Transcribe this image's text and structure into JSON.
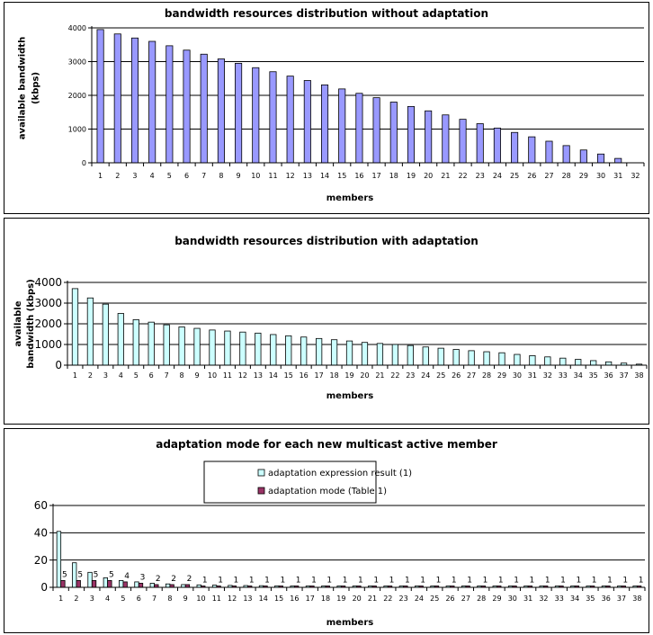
{
  "chart_data": [
    {
      "type": "bar",
      "title": "bandwidth resources distribution without adaptation",
      "xlabel": "members",
      "ylabel": "available bandwidth (kbps)",
      "ylabel_lines": [
        "available bandwidth",
        "(kbps)"
      ],
      "ylim": [
        0,
        4000
      ],
      "yticks": [
        0,
        1000,
        2000,
        3000,
        4000
      ],
      "grid": true,
      "bar_color": "#9999ff",
      "categories": [
        "1",
        "2",
        "3",
        "4",
        "5",
        "6",
        "7",
        "8",
        "9",
        "10",
        "11",
        "12",
        "13",
        "14",
        "15",
        "16",
        "17",
        "18",
        "19",
        "20",
        "21",
        "22",
        "23",
        "24",
        "25",
        "26",
        "27",
        "28",
        "29",
        "30",
        "31",
        "32"
      ],
      "values": [
        3950,
        3820,
        3700,
        3600,
        3470,
        3340,
        3220,
        3080,
        2950,
        2820,
        2700,
        2570,
        2440,
        2310,
        2190,
        2060,
        1930,
        1800,
        1670,
        1540,
        1420,
        1290,
        1160,
        1030,
        900,
        770,
        640,
        510,
        380,
        260,
        130,
        0
      ]
    },
    {
      "type": "bar",
      "title": "bandwidth resources distribution with adaptation",
      "xlabel": "members",
      "ylabel": "available bandwidth (kbps)",
      "ylabel_lines": [
        "available",
        "bandwidth (kbps)"
      ],
      "ylim": [
        0,
        4000
      ],
      "yticks": [
        0,
        1000,
        2000,
        3000,
        4000
      ],
      "grid": true,
      "bar_color": "#ccffff",
      "categories": [
        "1",
        "2",
        "3",
        "4",
        "5",
        "6",
        "7",
        "8",
        "9",
        "10",
        "11",
        "12",
        "13",
        "14",
        "15",
        "16",
        "17",
        "18",
        "19",
        "20",
        "21",
        "22",
        "23",
        "24",
        "25",
        "26",
        "27",
        "28",
        "29",
        "30",
        "31",
        "32",
        "33",
        "34",
        "35",
        "36",
        "37",
        "38"
      ],
      "values": [
        3700,
        3250,
        2950,
        2500,
        2200,
        2080,
        1950,
        1850,
        1780,
        1700,
        1650,
        1600,
        1550,
        1480,
        1420,
        1360,
        1290,
        1230,
        1170,
        1100,
        1050,
        1000,
        950,
        880,
        820,
        760,
        700,
        650,
        600,
        520,
        460,
        400,
        340,
        280,
        220,
        160,
        100,
        50
      ]
    },
    {
      "type": "bar",
      "title": "adaptation mode for each new multicast active member",
      "xlabel": "members",
      "ylabel": "",
      "ylim": [
        0,
        60
      ],
      "yticks": [
        0,
        20,
        40,
        60
      ],
      "grid": true,
      "legend": "top-center",
      "categories": [
        "1",
        "2",
        "3",
        "4",
        "5",
        "6",
        "7",
        "8",
        "9",
        "10",
        "11",
        "12",
        "13",
        "14",
        "15",
        "16",
        "17",
        "18",
        "19",
        "20",
        "21",
        "22",
        "23",
        "24",
        "25",
        "26",
        "27",
        "28",
        "29",
        "30",
        "31",
        "32",
        "33",
        "34",
        "35",
        "36",
        "37",
        "38"
      ],
      "series": [
        {
          "name": "adaptation expression result (1)",
          "color": "#ccffff",
          "values": [
            41,
            18,
            11,
            7,
            5,
            4,
            3,
            2.5,
            2,
            1.8,
            1.6,
            1.4,
            1.3,
            1.2,
            1.1,
            1,
            1,
            1,
            1,
            1,
            1,
            1,
            1,
            1,
            1,
            1,
            1,
            1,
            1,
            1,
            1,
            1,
            1,
            1,
            1,
            1,
            1,
            1
          ]
        },
        {
          "name": "adaptation mode (Table 1)",
          "color": "#993366",
          "values": [
            5,
            5,
            5,
            5,
            4,
            3,
            2,
            2,
            2,
            1,
            1,
            1,
            1,
            1,
            1,
            1,
            1,
            1,
            1,
            1,
            1,
            1,
            1,
            1,
            1,
            1,
            1,
            1,
            1,
            1,
            1,
            1,
            1,
            1,
            1,
            1,
            1,
            1
          ]
        }
      ],
      "data_labels_series": 1
    }
  ]
}
